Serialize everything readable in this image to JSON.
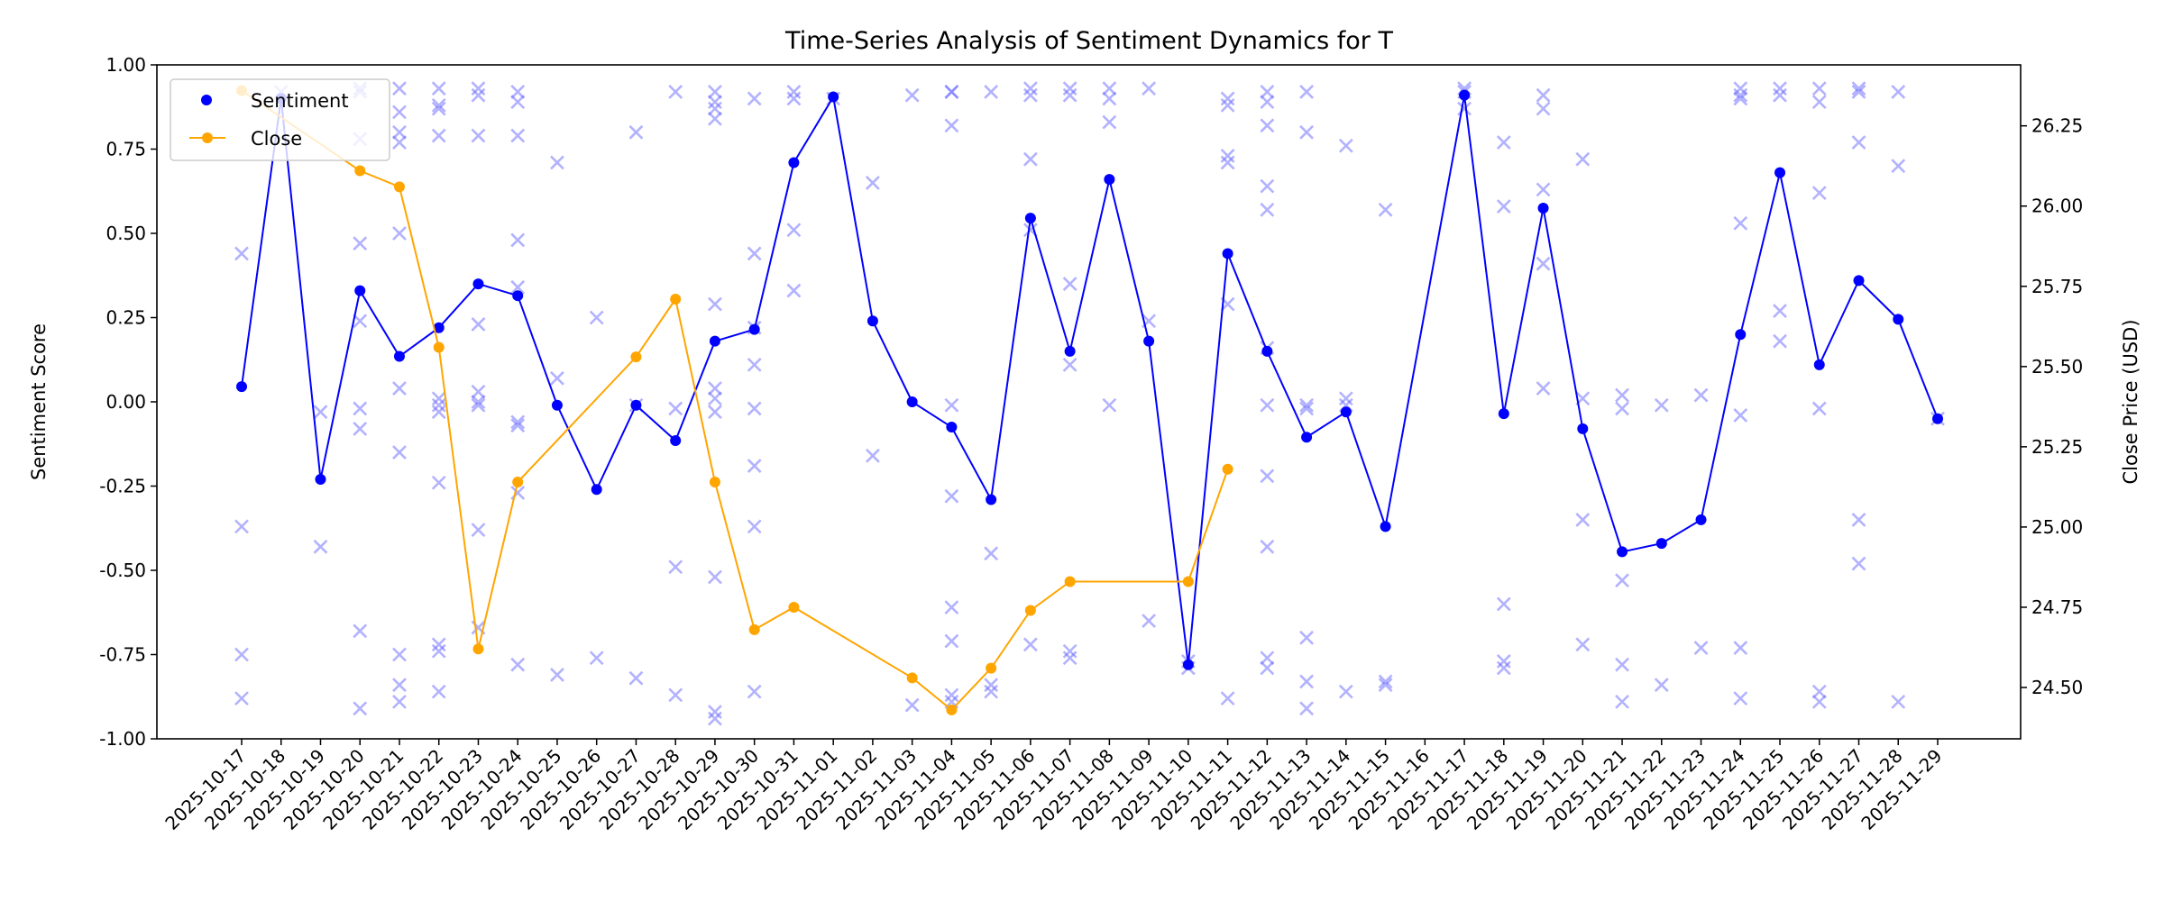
{
  "chart_data": {
    "type": "line",
    "title": "Time-Series Analysis of Sentiment Dynamics for T",
    "xlabel": "",
    "ylabel": "Sentiment Score",
    "y2label": "Close Price (USD)",
    "ylim": [
      -1.0,
      1.0
    ],
    "y2lim": [
      24.34,
      26.44
    ],
    "yticks": [
      "-1.00",
      "-0.75",
      "-0.50",
      "-0.25",
      "0.00",
      "0.25",
      "0.50",
      "0.75",
      "1.00"
    ],
    "y2ticks": [
      "24.50",
      "24.75",
      "25.00",
      "25.25",
      "25.50",
      "25.75",
      "26.00",
      "26.25"
    ],
    "legend_position": "top-left",
    "colors": {
      "sentiment": "#0000ff",
      "close": "#ffa500",
      "scatter": "#6666ff"
    },
    "categories": [
      "2025-10-17",
      "2025-10-18",
      "2025-10-19",
      "2025-10-20",
      "2025-10-21",
      "2025-10-22",
      "2025-10-23",
      "2025-10-24",
      "2025-10-25",
      "2025-10-26",
      "2025-10-27",
      "2025-10-28",
      "2025-10-29",
      "2025-10-30",
      "2025-10-31",
      "2025-11-01",
      "2025-11-02",
      "2025-11-03",
      "2025-11-04",
      "2025-11-05",
      "2025-11-06",
      "2025-11-07",
      "2025-11-08",
      "2025-11-09",
      "2025-11-10",
      "2025-11-11",
      "2025-11-12",
      "2025-11-13",
      "2025-11-14",
      "2025-11-15",
      "2025-11-16",
      "2025-11-17",
      "2025-11-18",
      "2025-11-19",
      "2025-11-20",
      "2025-11-21",
      "2025-11-22",
      "2025-11-23",
      "2025-11-24",
      "2025-11-25",
      "2025-11-26",
      "2025-11-27",
      "2025-11-28",
      "2025-11-29"
    ],
    "series": [
      {
        "name": "Sentiment",
        "axis": "left",
        "values": [
          0.045,
          0.9,
          -0.23,
          0.33,
          0.135,
          0.22,
          0.35,
          0.315,
          -0.01,
          -0.26,
          -0.01,
          -0.115,
          0.18,
          0.215,
          0.71,
          0.905,
          0.24,
          0.0,
          -0.075,
          -0.29,
          0.545,
          0.15,
          0.66,
          0.18,
          -0.78,
          0.44,
          0.15,
          -0.105,
          -0.03,
          -0.37,
          null,
          0.91,
          -0.035,
          0.575,
          -0.08,
          -0.445,
          -0.42,
          -0.35,
          0.2,
          0.68,
          0.11,
          0.36,
          0.245,
          -0.05
        ]
      },
      {
        "name": "Close",
        "axis": "right",
        "values": [
          26.36,
          null,
          null,
          26.11,
          26.06,
          25.56,
          24.62,
          25.14,
          null,
          null,
          25.53,
          25.71,
          25.14,
          24.68,
          24.75,
          null,
          null,
          24.53,
          24.43,
          24.56,
          24.74,
          24.83,
          null,
          null,
          24.83,
          25.18,
          null,
          null,
          null,
          null,
          null,
          null,
          null,
          null,
          null,
          null,
          null,
          null,
          null,
          null,
          null,
          null,
          null,
          null
        ]
      }
    ],
    "scatter_points": [
      [
        0,
        0.44
      ],
      [
        0,
        -0.37
      ],
      [
        0,
        -0.75
      ],
      [
        0,
        -0.88
      ],
      [
        1,
        0.92
      ],
      [
        2,
        -0.03
      ],
      [
        2,
        -0.43
      ],
      [
        3,
        0.93
      ],
      [
        3,
        0.92
      ],
      [
        3,
        0.78
      ],
      [
        3,
        0.47
      ],
      [
        3,
        0.24
      ],
      [
        3,
        -0.02
      ],
      [
        3,
        -0.08
      ],
      [
        3,
        -0.68
      ],
      [
        3,
        -0.91
      ],
      [
        4,
        0.93
      ],
      [
        4,
        0.86
      ],
      [
        4,
        0.8
      ],
      [
        4,
        0.77
      ],
      [
        4,
        0.5
      ],
      [
        4,
        0.04
      ],
      [
        4,
        -0.15
      ],
      [
        4,
        -0.75
      ],
      [
        4,
        -0.84
      ],
      [
        4,
        -0.89
      ],
      [
        5,
        0.93
      ],
      [
        5,
        0.88
      ],
      [
        5,
        0.87
      ],
      [
        5,
        0.79
      ],
      [
        5,
        0.01
      ],
      [
        5,
        -0.01
      ],
      [
        5,
        -0.03
      ],
      [
        5,
        -0.24
      ],
      [
        5,
        -0.72
      ],
      [
        5,
        -0.74
      ],
      [
        5,
        -0.86
      ],
      [
        6,
        0.93
      ],
      [
        6,
        0.91
      ],
      [
        6,
        0.79
      ],
      [
        6,
        0.23
      ],
      [
        6,
        0.03
      ],
      [
        6,
        0.0
      ],
      [
        6,
        -0.01
      ],
      [
        6,
        -0.38
      ],
      [
        6,
        -0.67
      ],
      [
        7,
        0.92
      ],
      [
        7,
        0.89
      ],
      [
        7,
        0.79
      ],
      [
        7,
        0.48
      ],
      [
        7,
        0.34
      ],
      [
        7,
        -0.06
      ],
      [
        7,
        -0.07
      ],
      [
        7,
        -0.27
      ],
      [
        7,
        -0.78
      ],
      [
        8,
        0.71
      ],
      [
        8,
        0.07
      ],
      [
        8,
        -0.81
      ],
      [
        9,
        0.25
      ],
      [
        9,
        -0.76
      ],
      [
        10,
        0.8
      ],
      [
        10,
        -0.01
      ],
      [
        10,
        -0.82
      ],
      [
        11,
        0.92
      ],
      [
        11,
        -0.02
      ],
      [
        11,
        -0.49
      ],
      [
        11,
        -0.87
      ],
      [
        12,
        0.92
      ],
      [
        12,
        0.89
      ],
      [
        12,
        0.87
      ],
      [
        12,
        0.84
      ],
      [
        12,
        0.29
      ],
      [
        12,
        0.04
      ],
      [
        12,
        0.01
      ],
      [
        12,
        -0.03
      ],
      [
        12,
        -0.52
      ],
      [
        12,
        -0.92
      ],
      [
        12,
        -0.94
      ],
      [
        13,
        0.9
      ],
      [
        13,
        0.44
      ],
      [
        13,
        0.22
      ],
      [
        13,
        0.11
      ],
      [
        13,
        -0.02
      ],
      [
        13,
        -0.19
      ],
      [
        13,
        -0.37
      ],
      [
        13,
        -0.86
      ],
      [
        14,
        0.92
      ],
      [
        14,
        0.9
      ],
      [
        14,
        0.51
      ],
      [
        14,
        0.33
      ],
      [
        15,
        0.9
      ],
      [
        16,
        0.65
      ],
      [
        16,
        -0.16
      ],
      [
        17,
        0.91
      ],
      [
        17,
        -0.9
      ],
      [
        18,
        0.92
      ],
      [
        18,
        0.92
      ],
      [
        18,
        0.82
      ],
      [
        18,
        -0.01
      ],
      [
        18,
        -0.28
      ],
      [
        18,
        -0.61
      ],
      [
        18,
        -0.71
      ],
      [
        18,
        -0.87
      ],
      [
        18,
        -0.89
      ],
      [
        19,
        0.92
      ],
      [
        19,
        -0.45
      ],
      [
        19,
        -0.84
      ],
      [
        19,
        -0.86
      ],
      [
        20,
        0.93
      ],
      [
        20,
        0.91
      ],
      [
        20,
        0.72
      ],
      [
        20,
        0.51
      ],
      [
        20,
        -0.72
      ],
      [
        21,
        0.93
      ],
      [
        21,
        0.91
      ],
      [
        21,
        0.35
      ],
      [
        21,
        0.11
      ],
      [
        21,
        -0.74
      ],
      [
        21,
        -0.76
      ],
      [
        22,
        0.93
      ],
      [
        22,
        0.9
      ],
      [
        22,
        0.83
      ],
      [
        22,
        -0.01
      ],
      [
        23,
        0.93
      ],
      [
        23,
        0.24
      ],
      [
        23,
        -0.65
      ],
      [
        24,
        -0.77
      ],
      [
        24,
        -0.79
      ],
      [
        25,
        0.9
      ],
      [
        25,
        0.88
      ],
      [
        25,
        0.73
      ],
      [
        25,
        0.71
      ],
      [
        25,
        0.29
      ],
      [
        25,
        -0.88
      ],
      [
        26,
        0.92
      ],
      [
        26,
        0.89
      ],
      [
        26,
        0.82
      ],
      [
        26,
        0.64
      ],
      [
        26,
        0.57
      ],
      [
        26,
        0.16
      ],
      [
        26,
        -0.01
      ],
      [
        26,
        -0.22
      ],
      [
        26,
        -0.43
      ],
      [
        26,
        -0.76
      ],
      [
        26,
        -0.79
      ],
      [
        27,
        0.92
      ],
      [
        27,
        0.8
      ],
      [
        27,
        -0.01
      ],
      [
        27,
        -0.02
      ],
      [
        27,
        -0.7
      ],
      [
        27,
        -0.83
      ],
      [
        27,
        -0.91
      ],
      [
        28,
        0.76
      ],
      [
        28,
        0.01
      ],
      [
        28,
        -0.01
      ],
      [
        28,
        -0.86
      ],
      [
        29,
        0.57
      ],
      [
        29,
        -0.83
      ],
      [
        29,
        -0.84
      ],
      [
        31,
        0.93
      ],
      [
        31,
        0.92
      ],
      [
        31,
        0.87
      ],
      [
        32,
        0.77
      ],
      [
        32,
        0.58
      ],
      [
        32,
        -0.6
      ],
      [
        32,
        -0.77
      ],
      [
        32,
        -0.79
      ],
      [
        33,
        0.91
      ],
      [
        33,
        0.87
      ],
      [
        33,
        0.63
      ],
      [
        33,
        0.41
      ],
      [
        33,
        0.04
      ],
      [
        34,
        0.72
      ],
      [
        34,
        0.01
      ],
      [
        34,
        -0.35
      ],
      [
        34,
        -0.72
      ],
      [
        35,
        0.02
      ],
      [
        35,
        -0.02
      ],
      [
        35,
        -0.53
      ],
      [
        35,
        -0.78
      ],
      [
        35,
        -0.89
      ],
      [
        36,
        -0.01
      ],
      [
        36,
        -0.84
      ],
      [
        37,
        0.02
      ],
      [
        37,
        -0.73
      ],
      [
        38,
        0.93
      ],
      [
        38,
        0.91
      ],
      [
        38,
        0.9
      ],
      [
        38,
        0.53
      ],
      [
        38,
        -0.04
      ],
      [
        38,
        -0.73
      ],
      [
        38,
        -0.88
      ],
      [
        39,
        0.93
      ],
      [
        39,
        0.91
      ],
      [
        39,
        0.27
      ],
      [
        39,
        0.18
      ],
      [
        40,
        0.93
      ],
      [
        40,
        0.89
      ],
      [
        40,
        0.62
      ],
      [
        40,
        -0.02
      ],
      [
        40,
        -0.86
      ],
      [
        40,
        -0.89
      ],
      [
        41,
        0.93
      ],
      [
        41,
        0.92
      ],
      [
        41,
        0.77
      ],
      [
        41,
        -0.35
      ],
      [
        41,
        -0.48
      ],
      [
        42,
        0.92
      ],
      [
        42,
        0.7
      ],
      [
        42,
        -0.89
      ],
      [
        43,
        -0.05
      ]
    ]
  }
}
